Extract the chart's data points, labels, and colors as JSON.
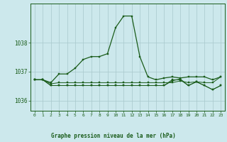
{
  "title": "Graphe pression niveau de la mer (hPa)",
  "bg_color": "#cce8ec",
  "grid_color": "#a8c8cc",
  "line_color": "#1a5c1a",
  "xlim": [
    -0.5,
    23.5
  ],
  "ylim": [
    1035.65,
    1039.35
  ],
  "yticks": [
    1036,
    1037,
    1038
  ],
  "xticks": [
    0,
    1,
    2,
    3,
    4,
    5,
    6,
    7,
    8,
    9,
    10,
    11,
    12,
    13,
    14,
    15,
    16,
    17,
    18,
    19,
    20,
    21,
    22,
    23
  ],
  "series1": [
    1036.72,
    1036.72,
    1036.62,
    1036.92,
    1036.92,
    1037.12,
    1037.42,
    1037.52,
    1037.52,
    1037.62,
    1038.52,
    1038.92,
    1038.92,
    1037.52,
    1036.82,
    1036.72,
    1036.78,
    1036.82,
    1036.78,
    1036.82,
    1036.82,
    1036.82,
    1036.72,
    1036.82
  ],
  "series2": [
    1036.72,
    1036.72,
    1036.58,
    1036.62,
    1036.62,
    1036.62,
    1036.62,
    1036.62,
    1036.62,
    1036.62,
    1036.62,
    1036.62,
    1036.62,
    1036.62,
    1036.62,
    1036.62,
    1036.62,
    1036.62,
    1036.68,
    1036.62,
    1036.65,
    1036.62,
    1036.62,
    1036.82
  ],
  "series3": [
    1036.72,
    1036.72,
    1036.52,
    1036.52,
    1036.52,
    1036.52,
    1036.52,
    1036.52,
    1036.52,
    1036.52,
    1036.52,
    1036.52,
    1036.52,
    1036.52,
    1036.52,
    1036.52,
    1036.52,
    1036.68,
    1036.75,
    1036.52,
    1036.65,
    1036.52,
    1036.38,
    1036.52
  ],
  "series4": [
    1036.72,
    1036.72,
    1036.52,
    1036.52,
    1036.52,
    1036.52,
    1036.52,
    1036.52,
    1036.52,
    1036.52,
    1036.52,
    1036.52,
    1036.52,
    1036.52,
    1036.52,
    1036.52,
    1036.52,
    1036.72,
    1036.72,
    1036.52,
    1036.65,
    1036.52,
    1036.38,
    1036.52
  ]
}
